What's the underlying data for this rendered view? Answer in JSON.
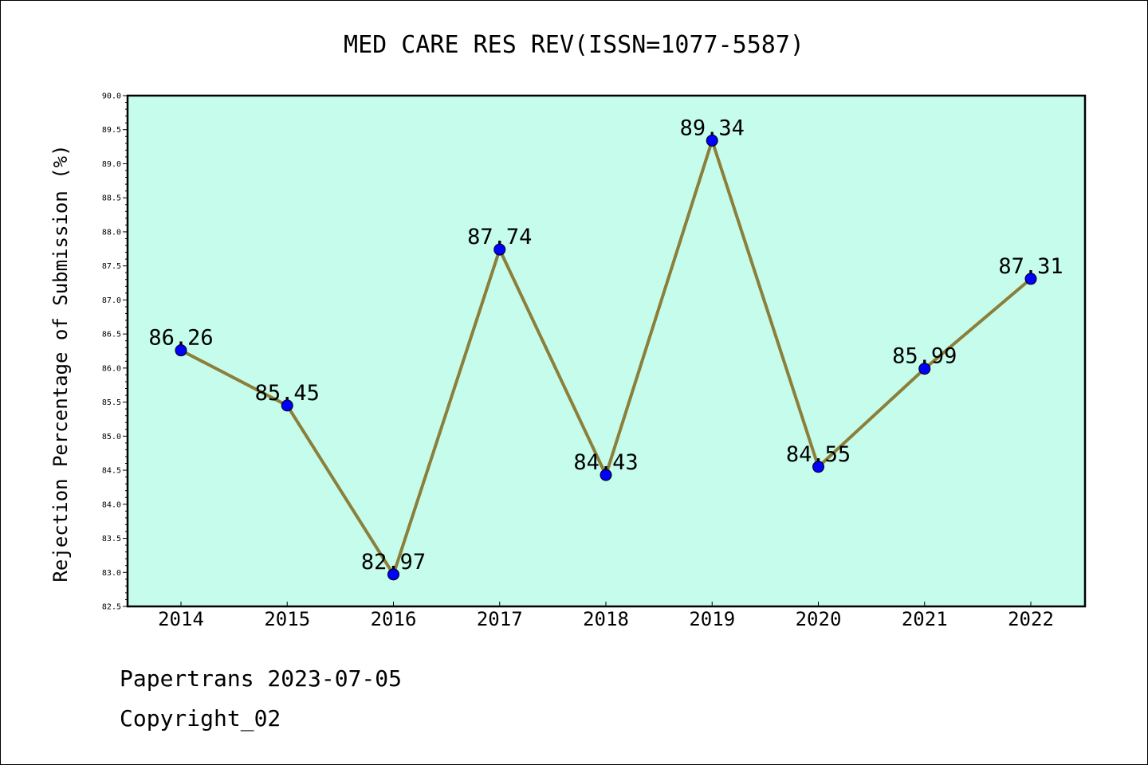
{
  "chart_data": {
    "type": "line",
    "title": "MED CARE RES REV(ISSN=1077-5587)",
    "xlabel": "",
    "ylabel": "Rejection Percentage of Submission (%)",
    "categories": [
      "2014",
      "2015",
      "2016",
      "2017",
      "2018",
      "2019",
      "2020",
      "2021",
      "2022"
    ],
    "series": [
      {
        "values": [
          86.26,
          85.45,
          82.97,
          87.74,
          84.43,
          89.34,
          84.55,
          85.99,
          87.31
        ],
        "data_labels": [
          "86.26",
          "85.45",
          "82.97",
          "87.74",
          "84.43",
          "89.34",
          "84.55",
          "85.99",
          "87.31"
        ]
      }
    ],
    "ylim": [
      82.5,
      90.0
    ],
    "yticks": [
      "82.5",
      "83.0",
      "83.5",
      "84.0",
      "84.5",
      "85.0",
      "85.5",
      "86.0",
      "86.5",
      "87.0",
      "87.5",
      "88.0",
      "88.5",
      "89.0",
      "89.5",
      "90.0"
    ],
    "grid": false,
    "colors": {
      "background": "#c6fcec",
      "line": "#8b7f3a",
      "marker": "#0000ff"
    }
  },
  "footer": {
    "line1": "Papertrans 2023-07-05",
    "line2": "Copyright_02"
  }
}
